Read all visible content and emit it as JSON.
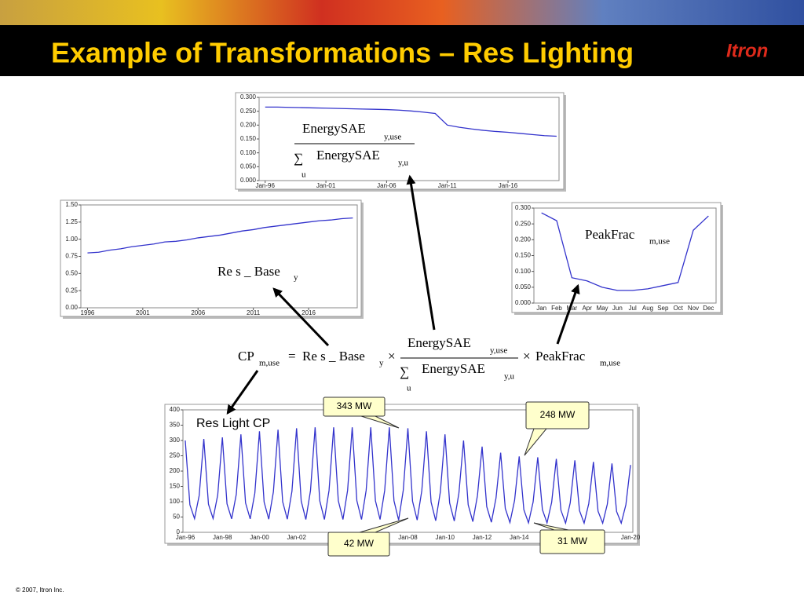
{
  "slide": {
    "title": "Example of Transformations – Res Lighting",
    "logo": "Itron",
    "footer": "© 2007, Itron Inc."
  },
  "formula": {
    "cp": "CP",
    "sub_muse": "m,use",
    "equals": "=",
    "resbase": "Re s _ Base",
    "sub_y": "y",
    "times": "×",
    "energy": "EnergySAE",
    "sub_yuse": "y,use",
    "sum": "∑",
    "u": "u",
    "sub_yu": "y,u",
    "peakfrac": "PeakFrac"
  },
  "chart_data": [
    {
      "type": "line",
      "color": "#3333cc",
      "x": [
        1996,
        1997,
        1998,
        1999,
        2000,
        2001,
        2002,
        2003,
        2004,
        2005,
        2006,
        2007,
        2008,
        2009,
        2010,
        2011,
        2012,
        2013,
        2014,
        2015,
        2016,
        2017,
        2018,
        2019,
        2020
      ],
      "values": [
        0.265,
        0.265,
        0.264,
        0.263,
        0.262,
        0.261,
        0.26,
        0.259,
        0.258,
        0.257,
        0.256,
        0.254,
        0.251,
        0.247,
        0.242,
        0.2,
        0.192,
        0.186,
        0.181,
        0.177,
        0.174,
        0.17,
        0.166,
        0.162,
        0.16
      ],
      "xlim": [
        1995.5,
        2020.2
      ],
      "xticks": [
        {
          "value": 1996,
          "label": "Jan-96"
        },
        {
          "value": 2001,
          "label": "Jan-01"
        },
        {
          "value": 2006,
          "label": "Jan-06"
        },
        {
          "value": 2011,
          "label": "Jan-11"
        },
        {
          "value": 2016,
          "label": "Jan-16"
        }
      ],
      "ylim": [
        0,
        0.3
      ],
      "yticks": [
        {
          "value": 0,
          "label": "0.000"
        },
        {
          "value": 0.05,
          "label": "0.050"
        },
        {
          "value": 0.1,
          "label": "0.100"
        },
        {
          "value": 0.15,
          "label": "0.150"
        },
        {
          "value": 0.2,
          "label": "0.200"
        },
        {
          "value": 0.25,
          "label": "0.250"
        },
        {
          "value": 0.3,
          "label": "0.300"
        }
      ]
    },
    {
      "type": "line",
      "color": "#3333cc",
      "x": [
        1996,
        1997,
        1998,
        1999,
        2000,
        2001,
        2002,
        2003,
        2004,
        2005,
        2006,
        2007,
        2008,
        2009,
        2010,
        2011,
        2012,
        2013,
        2014,
        2015,
        2016,
        2017,
        2018,
        2019,
        2020
      ],
      "values": [
        0.8,
        0.81,
        0.84,
        0.86,
        0.89,
        0.91,
        0.93,
        0.96,
        0.97,
        0.99,
        1.02,
        1.04,
        1.06,
        1.09,
        1.12,
        1.14,
        1.17,
        1.19,
        1.21,
        1.23,
        1.25,
        1.27,
        1.28,
        1.3,
        1.31
      ],
      "xlim": [
        1995.4,
        2020.4
      ],
      "xticks": [
        1996,
        2001,
        2006,
        2011,
        2016
      ],
      "ylim": [
        0,
        1.5
      ],
      "yticks": [
        {
          "value": 0,
          "label": "0.00"
        },
        {
          "value": 0.25,
          "label": "0.25"
        },
        {
          "value": 0.5,
          "label": "0.50"
        },
        {
          "value": 0.75,
          "label": "0.75"
        },
        {
          "value": 1,
          "label": "1.00"
        },
        {
          "value": 1.25,
          "label": "1.25"
        },
        {
          "value": 1.5,
          "label": "1.50"
        }
      ]
    },
    {
      "type": "line",
      "color": "#3333cc",
      "categories": [
        "Jan",
        "Feb",
        "Mar",
        "Apr",
        "May",
        "Jun",
        "Jul",
        "Aug",
        "Sep",
        "Oct",
        "Nov",
        "Dec"
      ],
      "values": [
        0.285,
        0.26,
        0.08,
        0.07,
        0.05,
        0.04,
        0.04,
        0.045,
        0.055,
        0.065,
        0.23,
        0.275
      ],
      "ylim": [
        0,
        0.3
      ],
      "yticks": [
        {
          "value": 0,
          "label": "0.000"
        },
        {
          "value": 0.05,
          "label": "0.050"
        },
        {
          "value": 0.1,
          "label": "0.100"
        },
        {
          "value": 0.15,
          "label": "0.150"
        },
        {
          "value": 0.2,
          "label": "0.200"
        },
        {
          "value": 0.25,
          "label": "0.250"
        },
        {
          "value": 0.3,
          "label": "0.300"
        }
      ]
    },
    {
      "type": "line",
      "color": "#3333cc",
      "annotations": [
        "Res Light CP",
        "343 MW",
        "248 MW",
        "42 MW",
        "31 MW"
      ],
      "categories": [
        "Jan-96",
        null,
        null,
        null,
        null,
        null,
        null,
        null,
        "Jan-98",
        null,
        null,
        null,
        null,
        null,
        null,
        null,
        "Jan-00",
        null,
        null,
        null,
        null,
        null,
        null,
        null,
        "Jan-02",
        null,
        null,
        null,
        null,
        null,
        null,
        null,
        null,
        null,
        null,
        null,
        null,
        null,
        null,
        null,
        null,
        null,
        null,
        null,
        null,
        null,
        null,
        null,
        "Jan-08",
        null,
        null,
        null,
        null,
        null,
        null,
        null,
        "Jan-10",
        null,
        null,
        null,
        null,
        null,
        null,
        null,
        "Jan-12",
        null,
        null,
        null,
        null,
        null,
        null,
        null,
        "Jan-14",
        null,
        null,
        null,
        null,
        null,
        null,
        null,
        null,
        null,
        null,
        null,
        null,
        null,
        null,
        null,
        null,
        null,
        null,
        null,
        null,
        null,
        null,
        null,
        "Jan-20"
      ],
      "values": [
        300,
        90,
        45,
        120,
        305,
        92,
        45,
        122,
        310,
        93,
        44,
        124,
        320,
        96,
        44,
        128,
        330,
        99,
        43,
        132,
        335,
        100,
        43,
        134,
        340,
        102,
        42,
        136,
        343,
        103,
        42,
        137,
        343,
        103,
        42,
        137,
        343,
        103,
        42,
        137,
        343,
        103,
        42,
        137,
        343,
        103,
        40,
        137,
        340,
        102,
        40,
        136,
        330,
        99,
        38,
        132,
        320,
        96,
        37,
        128,
        300,
        90,
        35,
        120,
        280,
        84,
        33,
        112,
        260,
        78,
        32,
        104,
        248,
        74,
        31,
        99,
        245,
        74,
        31,
        98,
        240,
        72,
        30,
        96,
        235,
        71,
        30,
        94,
        230,
        69,
        30,
        92,
        225,
        68,
        30,
        90,
        220
      ],
      "ylim": [
        0,
        400
      ],
      "yticks": [
        0,
        50,
        100,
        150,
        200,
        250,
        300,
        350,
        400
      ]
    }
  ]
}
